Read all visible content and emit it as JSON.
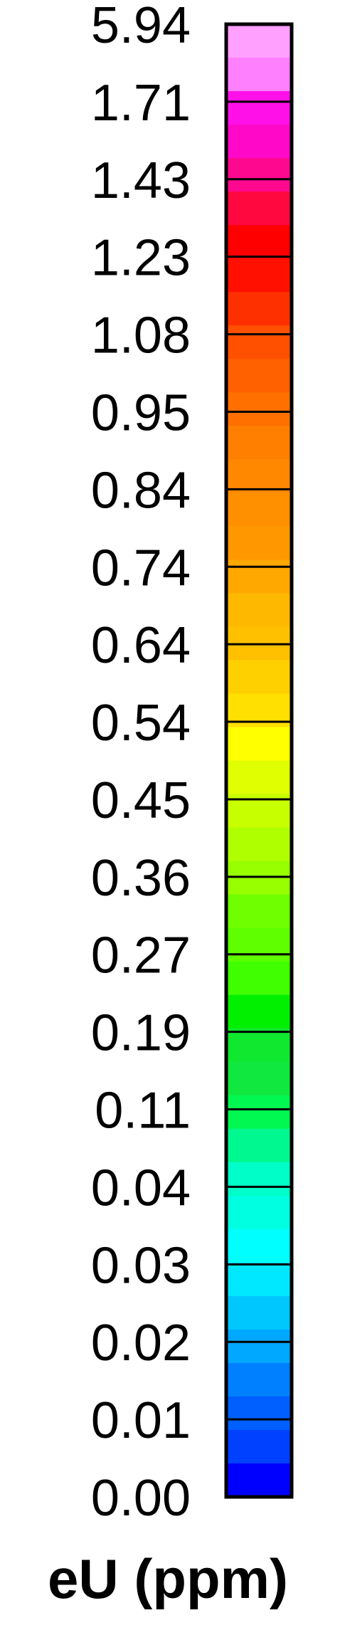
{
  "chart_data": {
    "type": "colorbar",
    "label": "eU (ppm)",
    "tick_labels": [
      "5.94",
      "1.71",
      "1.43",
      "1.23",
      "1.08",
      "0.95",
      "0.84",
      "0.74",
      "0.64",
      "0.54",
      "0.45",
      "0.36",
      "0.27",
      "0.19",
      "0.11",
      "0.04",
      "0.03",
      "0.02",
      "0.01",
      "0.00"
    ],
    "colors": [
      "#FFA0FF",
      "#FF80FF",
      "#FF10E8",
      "#FF08C8",
      "#FF0890",
      "#FF0840",
      "#FF0000",
      "#FF1000",
      "#FF3000",
      "#FF5000",
      "#FF6000",
      "#FF7000",
      "#FF8000",
      "#FF8800",
      "#FF9000",
      "#FF9800",
      "#FFA800",
      "#FFB800",
      "#FFC000",
      "#FFD000",
      "#FFE000",
      "#FFFF00",
      "#E0FF00",
      "#C8FF00",
      "#B0FF00",
      "#98FF00",
      "#70FF00",
      "#60FF00",
      "#40FF00",
      "#00F000",
      "#10E830",
      "#10E840",
      "#00F850",
      "#00F890",
      "#00FFC8",
      "#00FFE0",
      "#00FFFF",
      "#00E8FF",
      "#00C8FF",
      "#00A8FF",
      "#0080FF",
      "#0060FF",
      "#0040FF",
      "#0000FF"
    ]
  }
}
